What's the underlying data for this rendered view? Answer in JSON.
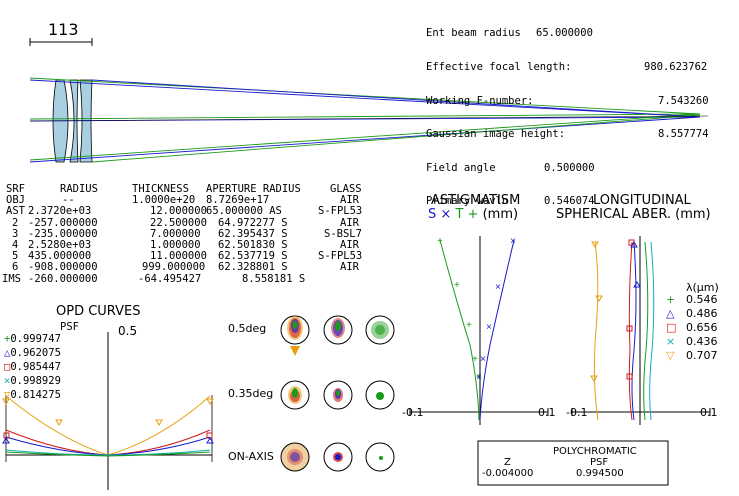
{
  "scale_bar": {
    "label": "113"
  },
  "lens_info": {
    "rows": [
      {
        "key": "Ent beam radius",
        "value": "65.000000"
      },
      {
        "key": "Effective focal length:",
        "value": "980.623762"
      },
      {
        "key": "Working F-number:",
        "value": "7.543260"
      },
      {
        "key": "Gaussian image height:",
        "value": "8.557774"
      },
      {
        "key": "Field angle",
        "value": "0.500000"
      },
      {
        "key": "Primary wavln",
        "value": "0.546074"
      }
    ]
  },
  "prescription": {
    "headers": [
      "SRF",
      "RADIUS",
      "THICKNESS",
      "APERTURE RADIUS",
      "GLASS"
    ],
    "rows": [
      [
        "OBJ",
        "--",
        "1.0000e+20",
        "8.7269e+17",
        "AIR"
      ],
      [
        "AST",
        "2.3720e+03",
        "12.000000",
        "65.000000 AS",
        "S-FPL53"
      ],
      [
        "2",
        "-257.000000",
        "22.500000",
        "64.972277 S",
        "AIR"
      ],
      [
        "3",
        "-235.000000",
        "7.000000",
        "62.395437 S",
        "S-BSL7"
      ],
      [
        "4",
        "2.5280e+03",
        "1.000000",
        "62.501830 S",
        "AIR"
      ],
      [
        "5",
        "435.000000",
        "11.000000",
        "62.537719 S",
        "S-FPL53"
      ],
      [
        "6",
        "-908.000000",
        "999.000000",
        "62.328801 S",
        "AIR"
      ],
      [
        "IMS",
        "-260.000000",
        "-64.495427",
        "8.558181 S",
        ""
      ]
    ]
  },
  "opd": {
    "title": "OPD CURVES",
    "psf_label": "PSF",
    "scale": "0.5",
    "legend": [
      {
        "marker": "+",
        "color": "#1a9a1a",
        "value": "0.999747"
      },
      {
        "marker": "△",
        "color": "#1a1acd",
        "value": "0.962075"
      },
      {
        "marker": "□",
        "color": "#cd1a1a",
        "value": "0.985447"
      },
      {
        "marker": "×",
        "color": "#10b0b0",
        "value": "0.998929"
      },
      {
        "marker": "▽",
        "color": "#e8a010",
        "value": "0.814275"
      }
    ]
  },
  "spots": {
    "labels": [
      "0.5deg",
      "0.35deg",
      "ON-AXIS"
    ]
  },
  "astig": {
    "title": "ASTIGMATISM",
    "subtitle_s": "S",
    "subtitle_x": "×",
    "subtitle_t": "T",
    "subtitle_plus": "+",
    "subtitle_unit": "(mm)",
    "xmin": "-0.1",
    "xmax": "0.1"
  },
  "long": {
    "title1": "LONGITUDINAL",
    "title2": "SPHERICAL ABER. (mm)",
    "xmin": "-0.1",
    "xmax": "0.1",
    "lambda_label": "λ(μm)",
    "legend": [
      {
        "marker": "+",
        "color": "#1a9a1a",
        "value": "0.546"
      },
      {
        "marker": "△",
        "color": "#1a1acd",
        "value": "0.486"
      },
      {
        "marker": "□",
        "color": "#cd1a1a",
        "value": "0.656"
      },
      {
        "marker": "×",
        "color": "#10b0b0",
        "value": "0.436"
      },
      {
        "marker": "▽",
        "color": "#e8a010",
        "value": "0.707"
      }
    ]
  },
  "poly": {
    "title": "POLYCHROMATIC",
    "col1": "Z",
    "col2": "PSF",
    "z": "-0.004000",
    "psf": "0.994500"
  },
  "colors": {
    "green": "#1a9a1a",
    "blue": "#1a1acd",
    "red": "#cd1a1a",
    "cyan": "#10b0b0",
    "orange": "#e8a010",
    "lens": "#a8d0e0"
  }
}
